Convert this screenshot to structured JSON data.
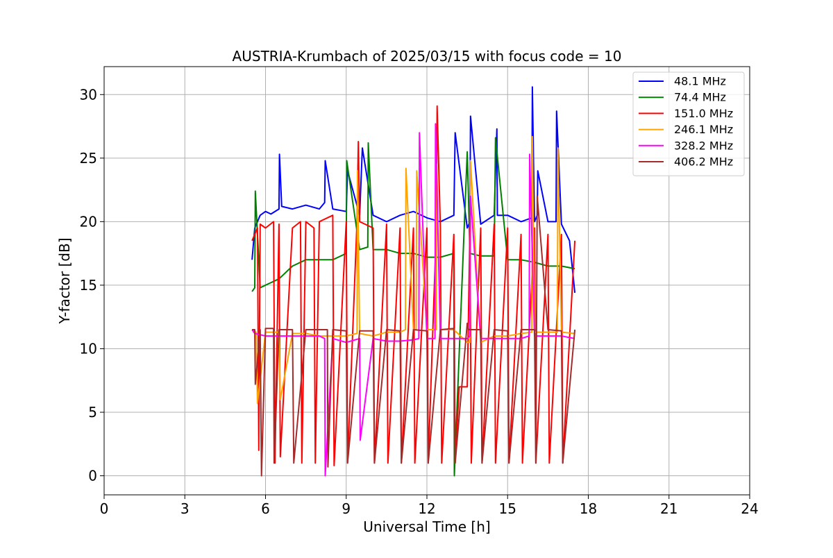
{
  "chart_data": {
    "type": "line",
    "title": "AUSTRIA-Krumbach of 2025/03/15 with focus code = 10",
    "xlabel": "Universal Time [h]",
    "ylabel": "Y-factor [dB]",
    "xlim": [
      0,
      24
    ],
    "ylim": [
      -1.5,
      32.2
    ],
    "xticks": [
      0,
      3,
      6,
      9,
      12,
      15,
      18,
      21,
      24
    ],
    "yticks": [
      0,
      5,
      10,
      15,
      20,
      25,
      30
    ],
    "grid": true,
    "legend_position": "top-right",
    "series": [
      {
        "name": "48.1 MHz",
        "color": "#0000ff",
        "x": [
          5.5,
          5.6,
          5.8,
          6.0,
          6.2,
          6.5,
          6.52,
          6.6,
          7.0,
          7.5,
          8.0,
          8.2,
          8.22,
          8.5,
          9.0,
          9.05,
          9.5,
          9.6,
          10.0,
          10.5,
          11.0,
          11.5,
          12.0,
          12.5,
          13.0,
          13.05,
          13.5,
          13.6,
          13.62,
          14.0,
          14.5,
          14.6,
          14.62,
          15.0,
          15.5,
          15.9,
          15.92,
          16.0,
          16.1,
          16.12,
          16.5,
          16.8,
          16.82,
          17.0,
          17.3,
          17.5
        ],
        "y": [
          17.0,
          19.5,
          20.5,
          20.8,
          20.6,
          21.0,
          25.3,
          21.2,
          21.0,
          21.3,
          21.0,
          21.5,
          24.8,
          21.0,
          20.8,
          24.0,
          20.5,
          25.8,
          20.5,
          20.0,
          20.5,
          20.8,
          20.3,
          20.0,
          20.5,
          27.0,
          19.5,
          20.0,
          28.3,
          19.8,
          20.5,
          27.3,
          20.5,
          20.5,
          20.0,
          20.3,
          30.6,
          20.0,
          20.5,
          24.0,
          20.0,
          20.0,
          28.7,
          19.8,
          18.5,
          14.4
        ]
      },
      {
        "name": "74.4 MHz",
        "color": "#008000",
        "x": [
          5.5,
          5.6,
          5.62,
          5.8,
          6.0,
          6.5,
          7.0,
          7.5,
          8.0,
          8.5,
          9.0,
          9.02,
          9.5,
          9.8,
          9.82,
          10.0,
          10.5,
          11.0,
          11.5,
          12.0,
          12.5,
          13.0,
          13.02,
          13.5,
          13.6,
          14.0,
          14.5,
          14.55,
          15.0,
          15.5,
          16.0,
          16.5,
          17.0,
          17.5
        ],
        "y": [
          14.5,
          14.8,
          22.4,
          14.8,
          15.0,
          15.5,
          16.5,
          17.0,
          17.0,
          17.0,
          17.5,
          24.8,
          17.8,
          18.0,
          26.2,
          17.8,
          17.8,
          17.5,
          17.5,
          17.2,
          17.2,
          17.5,
          0.0,
          25.5,
          17.5,
          17.3,
          17.3,
          26.6,
          17.0,
          17.0,
          16.8,
          16.5,
          16.5,
          16.3
        ]
      },
      {
        "name": "151.0 MHz",
        "color": "#ff0000",
        "x": [
          5.5,
          5.7,
          5.75,
          5.8,
          6.0,
          6.3,
          6.35,
          6.5,
          6.55,
          7.0,
          7.3,
          7.35,
          7.5,
          7.8,
          7.85,
          8.0,
          8.5,
          8.55,
          9.0,
          9.05,
          9.4,
          9.45,
          9.5,
          10.0,
          10.05,
          10.5,
          10.55,
          11.0,
          11.05,
          11.5,
          11.55,
          12.0,
          12.05,
          12.35,
          12.38,
          12.5,
          12.55,
          13.0,
          13.05,
          13.2,
          13.5,
          13.6,
          13.65,
          14.0,
          14.05,
          14.5,
          14.55,
          15.0,
          15.05,
          15.5,
          15.55,
          16.0,
          16.05,
          16.5,
          16.55,
          17.0,
          17.05,
          17.5
        ],
        "y": [
          18.5,
          19.5,
          2.0,
          19.8,
          19.5,
          20.0,
          1.0,
          19.8,
          1.5,
          19.5,
          20.0,
          1.0,
          20.0,
          19.5,
          1.0,
          20.0,
          20.5,
          0.8,
          20.0,
          1.0,
          20.0,
          26.3,
          20.0,
          19.5,
          1.0,
          19.8,
          1.0,
          19.5,
          1.0,
          19.5,
          1.0,
          19.5,
          1.0,
          19.5,
          29.1,
          19.5,
          1.0,
          19.0,
          1.0,
          7.0,
          7.0,
          19.5,
          1.0,
          19.5,
          1.0,
          19.8,
          1.0,
          19.5,
          1.0,
          19.0,
          1.0,
          19.5,
          1.0,
          19.0,
          1.0,
          19.0,
          1.0,
          18.5
        ]
      },
      {
        "name": "246.1 MHz",
        "color": "#ffa500",
        "x": [
          5.5,
          5.65,
          5.7,
          6.0,
          6.5,
          6.55,
          7.0,
          7.5,
          8.0,
          8.5,
          9.0,
          9.4,
          9.42,
          9.5,
          10.0,
          10.5,
          11.0,
          11.2,
          11.22,
          11.5,
          11.6,
          11.62,
          12.0,
          12.35,
          12.37,
          12.5,
          13.0,
          13.5,
          13.6,
          13.62,
          14.0,
          14.5,
          15.0,
          15.5,
          15.9,
          15.92,
          16.0,
          16.5,
          16.85,
          16.87,
          17.0,
          17.5
        ],
        "y": [
          11.5,
          11.3,
          5.7,
          11.3,
          11.3,
          6.0,
          11.2,
          11.2,
          11.0,
          11.0,
          11.0,
          11.2,
          24.0,
          11.2,
          11.0,
          11.3,
          11.3,
          11.5,
          24.2,
          11.5,
          11.5,
          24.0,
          11.5,
          11.5,
          24.5,
          11.5,
          11.5,
          10.5,
          10.5,
          24.8,
          10.5,
          11.0,
          11.0,
          11.2,
          11.3,
          26.7,
          11.3,
          11.3,
          11.3,
          25.8,
          11.3,
          11.2
        ]
      },
      {
        "name": "328.2 MHz",
        "color": "#ff00ff",
        "x": [
          5.5,
          5.6,
          6.0,
          6.5,
          7.0,
          7.5,
          8.0,
          8.2,
          8.22,
          8.5,
          9.0,
          9.5,
          9.52,
          10.0,
          10.5,
          11.0,
          11.5,
          11.7,
          11.72,
          12.0,
          12.3,
          12.32,
          12.5,
          13.0,
          13.5,
          13.6,
          13.62,
          14.0,
          14.5,
          15.0,
          15.5,
          15.8,
          15.82,
          16.0,
          16.5,
          17.0,
          17.5
        ],
        "y": [
          11.5,
          11.2,
          11.0,
          11.0,
          11.0,
          11.0,
          11.0,
          10.8,
          0.0,
          10.8,
          10.5,
          10.8,
          2.8,
          10.8,
          10.6,
          10.6,
          10.7,
          10.8,
          27.0,
          10.8,
          10.8,
          27.7,
          10.8,
          10.8,
          10.8,
          11.0,
          22.0,
          10.8,
          10.8,
          10.8,
          10.8,
          11.0,
          25.3,
          11.0,
          11.0,
          11.0,
          10.8
        ]
      },
      {
        "name": "406.2 MHz",
        "color": "#a52a2a",
        "x": [
          5.5,
          5.6,
          5.62,
          5.8,
          5.85,
          6.0,
          6.3,
          6.32,
          6.5,
          7.0,
          7.05,
          7.5,
          8.0,
          8.3,
          8.32,
          8.5,
          9.0,
          9.05,
          9.5,
          10.0,
          10.05,
          10.5,
          11.0,
          11.05,
          11.5,
          12.0,
          12.05,
          12.5,
          13.0,
          13.05,
          13.5,
          13.55,
          14.0,
          14.05,
          14.5,
          15.0,
          15.05,
          15.5,
          16.0,
          16.05,
          16.1,
          16.5,
          17.0,
          17.05,
          17.5
        ],
        "y": [
          11.5,
          11.5,
          7.2,
          11.5,
          0.0,
          11.6,
          11.6,
          1.0,
          11.5,
          11.5,
          1.0,
          11.5,
          11.5,
          11.5,
          0.7,
          11.5,
          11.4,
          1.0,
          11.4,
          11.4,
          1.0,
          11.5,
          11.4,
          1.0,
          11.5,
          11.4,
          1.0,
          11.5,
          11.6,
          1.0,
          12.0,
          11.5,
          11.5,
          1.0,
          11.5,
          11.4,
          1.0,
          11.5,
          11.5,
          1.0,
          22.0,
          11.5,
          11.4,
          1.0,
          11.5
        ]
      }
    ]
  }
}
